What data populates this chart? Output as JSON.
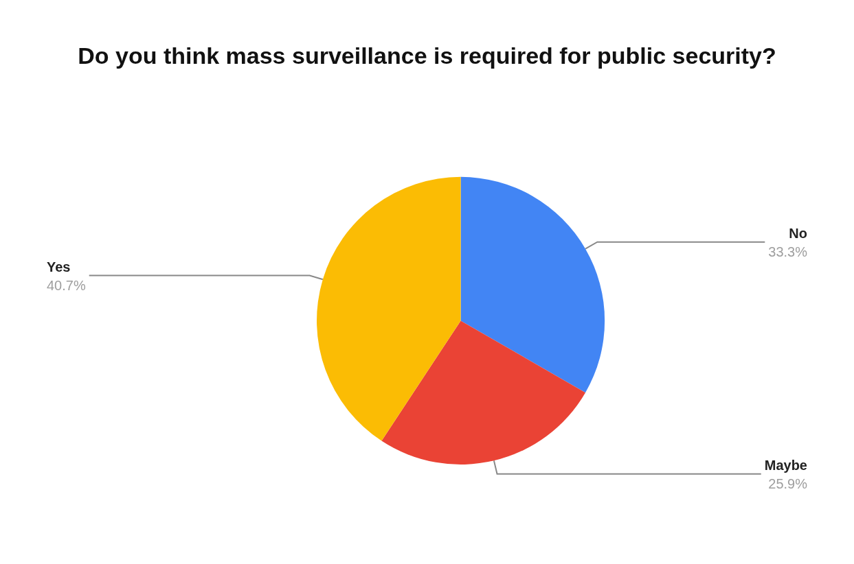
{
  "chart_data": {
    "type": "pie",
    "title": "Do you think mass surveillance is required for public security?",
    "categories": [
      "No",
      "Maybe",
      "Yes"
    ],
    "values": [
      33.3,
      25.9,
      40.7
    ],
    "colors": [
      "#4285f4",
      "#ea4335",
      "#fbbc04"
    ],
    "value_labels": [
      "33.3%",
      "25.9%",
      "40.7%"
    ]
  }
}
